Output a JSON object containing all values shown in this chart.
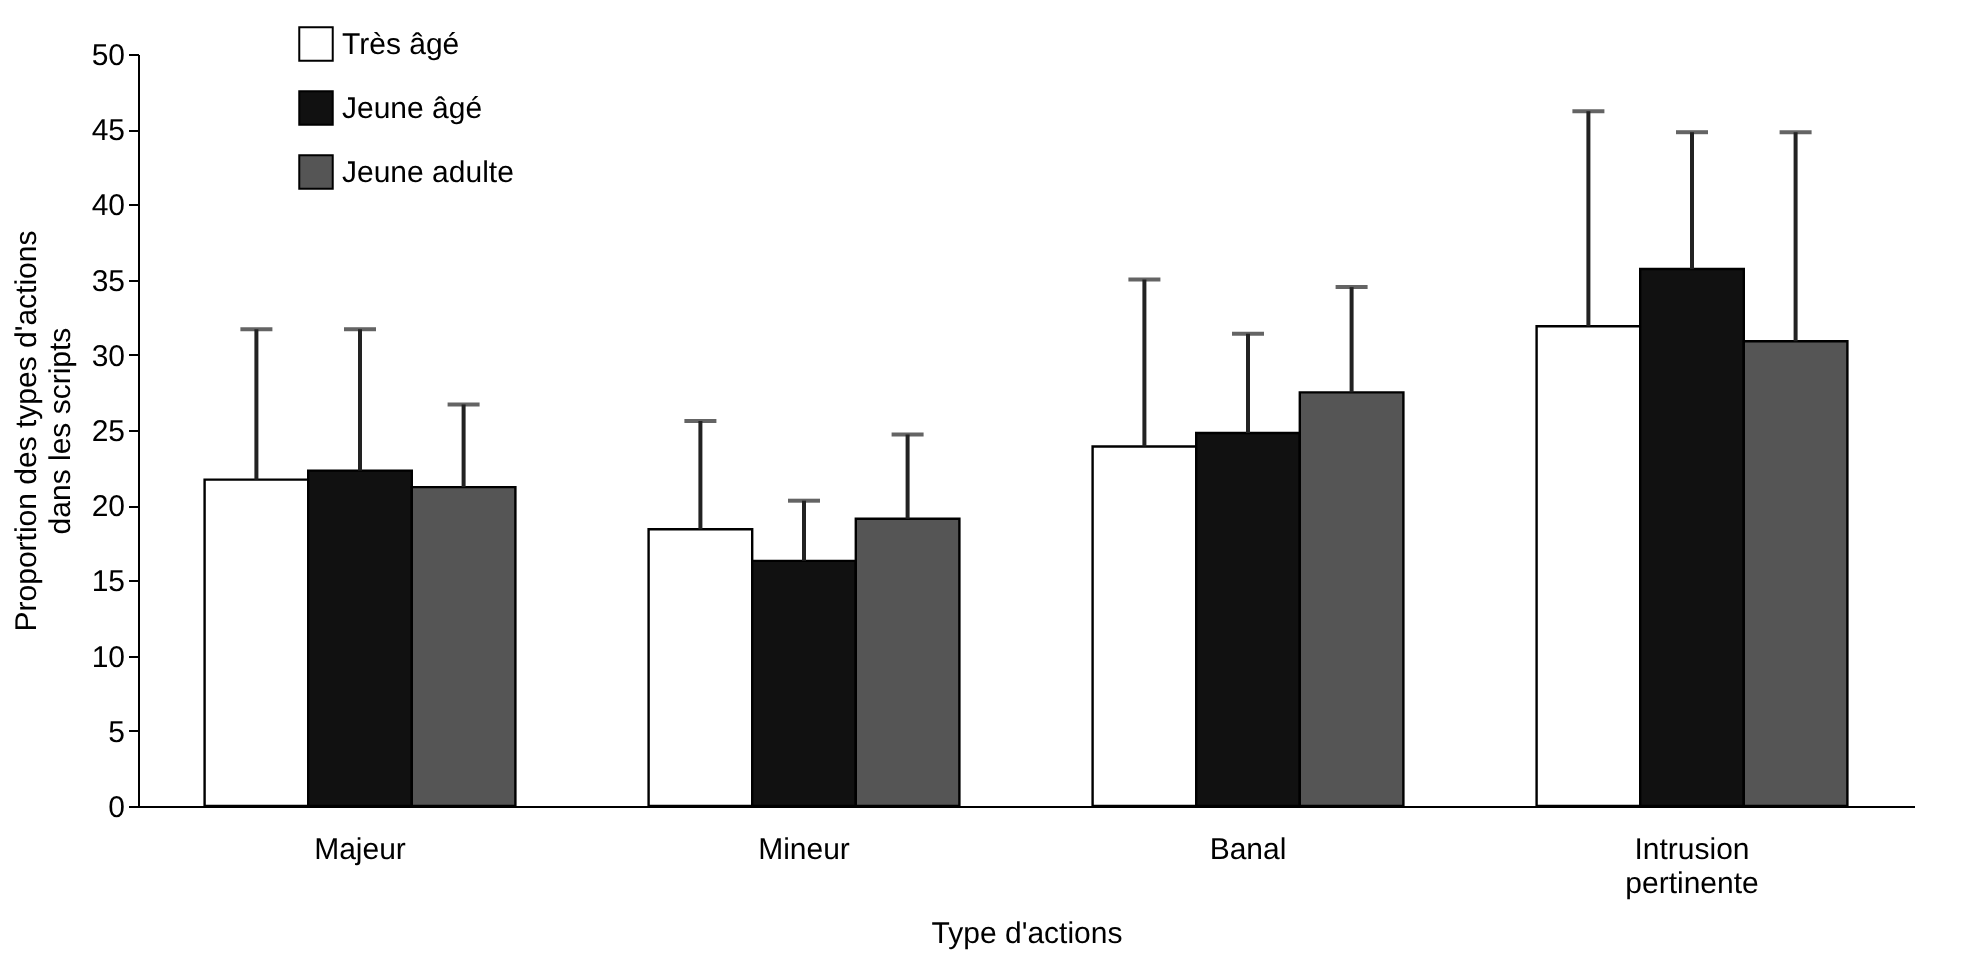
{
  "chart_data": {
    "type": "bar",
    "xlabel": "Type d'actions",
    "ylabel": "Proportion des types d'actions dans les scripts",
    "categories": [
      "Majeur",
      "Mineur",
      "Banal",
      "Intrusion pertinente"
    ],
    "series": [
      {
        "name": "Très âgé",
        "color": "#ffffff",
        "values": [
          21.7,
          18.4,
          23.9,
          31.9
        ],
        "errors": [
          [
            21.7,
            31.7
          ],
          [
            18.4,
            25.6
          ],
          [
            23.9,
            35.0
          ],
          [
            31.9,
            46.2
          ]
        ]
      },
      {
        "name": "Jeune âgé",
        "color": "#111111",
        "values": [
          22.3,
          16.3,
          24.8,
          35.7
        ],
        "errors": [
          [
            22.3,
            31.7
          ],
          [
            16.3,
            20.3
          ],
          [
            24.8,
            31.4
          ],
          [
            35.7,
            44.8
          ]
        ]
      },
      {
        "name": "Jeune adulte",
        "color": "#555555",
        "values": [
          21.2,
          19.1,
          27.5,
          30.9
        ],
        "errors": [
          [
            21.2,
            26.7
          ],
          [
            19.1,
            24.7
          ],
          [
            27.5,
            34.5
          ],
          [
            30.9,
            44.8
          ]
        ]
      }
    ],
    "ylim": [
      0,
      50
    ],
    "yticks": [
      0,
      5,
      10,
      15,
      20,
      25,
      30,
      35,
      40,
      45,
      50
    ],
    "grid": false,
    "legend": "top left"
  }
}
